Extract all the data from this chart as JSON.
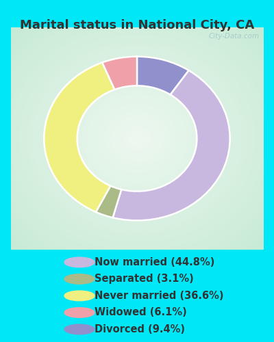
{
  "title": "Marital status in National City, CA",
  "slices": [
    {
      "label": "Now married (44.8%)",
      "value": 44.8,
      "color": "#c8b8e0"
    },
    {
      "label": "Separated (3.1%)",
      "value": 3.1,
      "color": "#aabb88"
    },
    {
      "label": "Never married (36.6%)",
      "value": 36.6,
      "color": "#f0f080"
    },
    {
      "label": "Widowed (6.1%)",
      "value": 6.1,
      "color": "#f0a0a8"
    },
    {
      "label": "Divorced (9.4%)",
      "value": 9.4,
      "color": "#9090cc"
    }
  ],
  "legend_colors": [
    "#c8b8e0",
    "#aabb88",
    "#f0f080",
    "#f0a0a8",
    "#9090cc"
  ],
  "legend_labels": [
    "Now married (44.8%)",
    "Separated (3.1%)",
    "Never married (36.6%)",
    "Widowed (6.1%)",
    "Divorced (9.4%)"
  ],
  "bg_cyan": "#00e8f8",
  "chart_bg_edge": "#c8eeda",
  "chart_bg_center": "#eef8f0",
  "title_fontsize": 13,
  "title_color": "#333333",
  "watermark": "City-Data.com",
  "watermark_color": "#aacccc",
  "legend_text_color": "#333333",
  "legend_fontsize": 10.5
}
